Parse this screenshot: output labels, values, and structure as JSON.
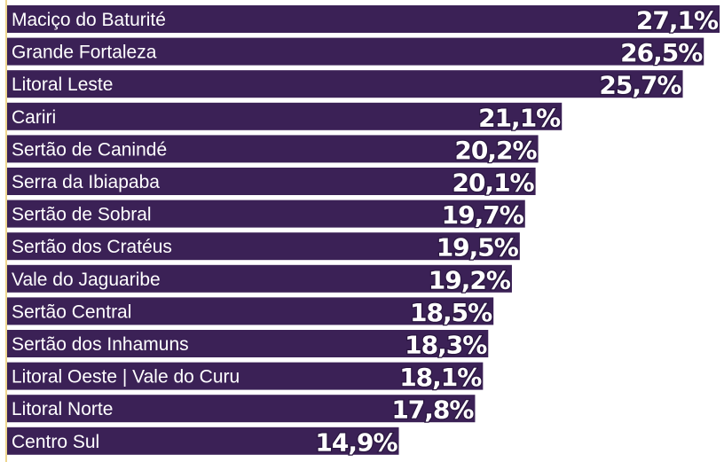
{
  "chart_data": {
    "type": "bar",
    "orientation": "horizontal",
    "color": "#3b2156",
    "categories": [
      "Maciço do Baturité",
      "Grande Fortaleza",
      "Litoral Leste",
      "Cariri",
      "Sertão de Canindé",
      "Serra da Ibiapaba",
      "Sertão de Sobral",
      "Sertão dos Cratéus",
      "Vale do Jaguaribe",
      "Sertão Central",
      "Sertão dos Inhamuns",
      "Litoral Oeste | Vale do Curu",
      "Litoral Norte",
      "Centro Sul"
    ],
    "values": [
      27.1,
      26.5,
      25.7,
      21.1,
      20.2,
      20.1,
      19.7,
      19.5,
      19.2,
      18.5,
      18.3,
      18.1,
      17.8,
      14.9
    ],
    "value_labels": [
      "27,1%",
      "26,5%",
      "25,7%",
      "21,1%",
      "20,2%",
      "20,1%",
      "19,7%",
      "19,5%",
      "19,2%",
      "18,5%",
      "18,3%",
      "18,1%",
      "17,8%",
      "14,9%"
    ],
    "xlim": [
      0,
      27.2
    ]
  }
}
